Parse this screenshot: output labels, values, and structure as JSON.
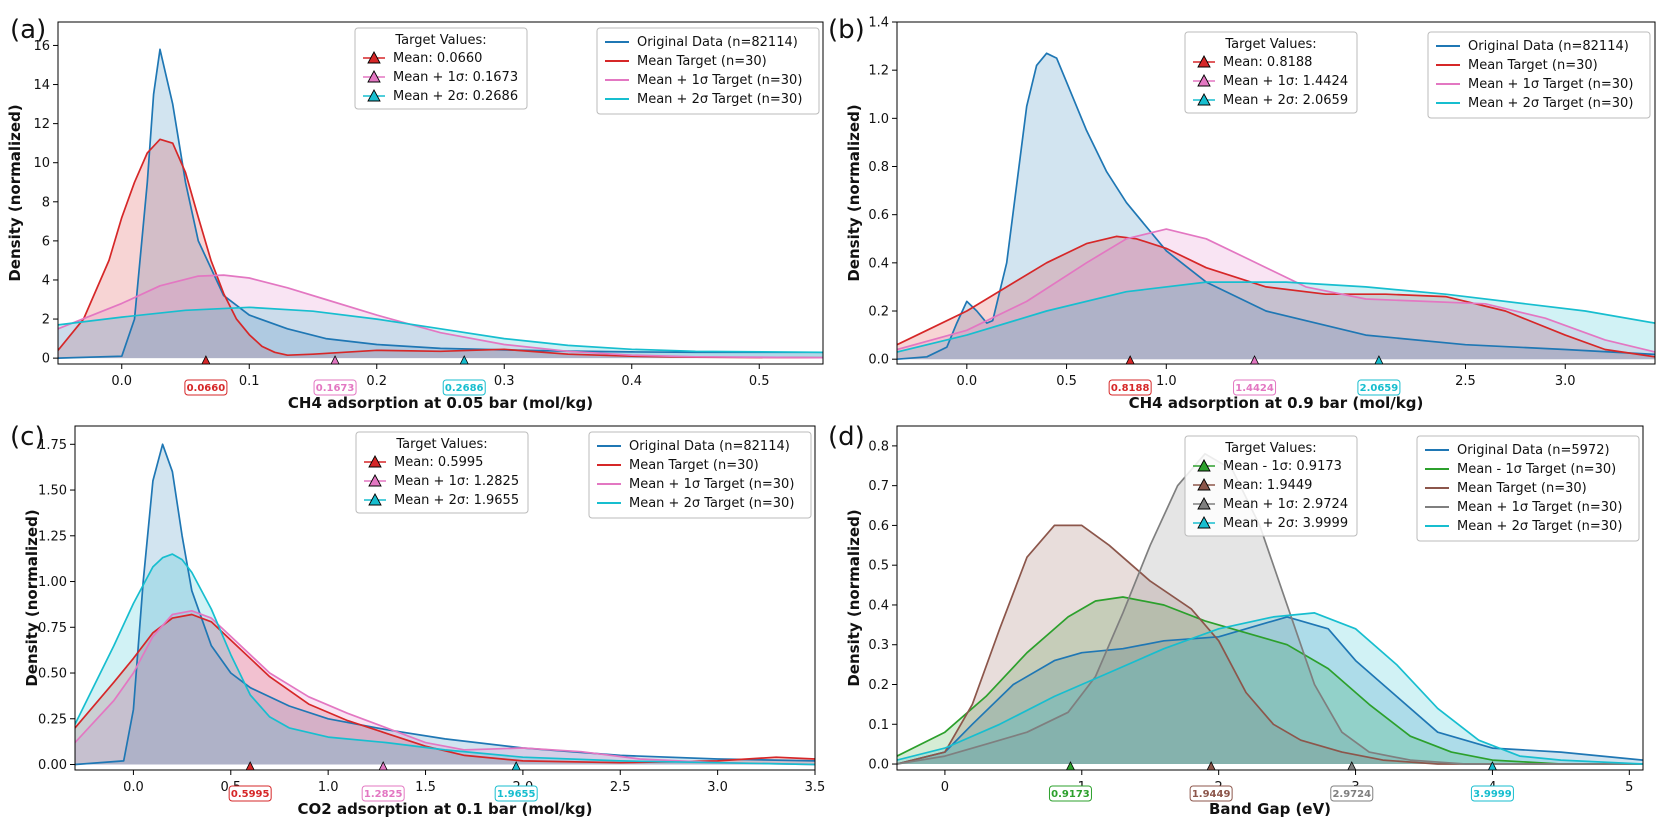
{
  "chart_data": [
    {
      "type": "area",
      "panel_label": "(a)",
      "xlabel": "CH4 adsorption at 0.05 bar (mol/kg)",
      "ylabel": "Density (normalized)",
      "xlim": [
        -0.05,
        0.55
      ],
      "ylim": [
        -0.3,
        17.2
      ],
      "xticks": [
        0.0,
        0.1,
        0.2,
        0.3,
        0.4,
        0.5
      ],
      "xtick_labels": [
        "0.0",
        "0.1",
        "0.2",
        "0.3",
        "0.4",
        "0.5"
      ],
      "yticks": [
        0,
        2,
        4,
        6,
        8,
        10,
        12,
        14,
        16
      ],
      "ytick_labels": [
        "0",
        "2",
        "4",
        "6",
        "8",
        "10",
        "12",
        "14",
        "16"
      ],
      "series": [
        {
          "name": "Original Data (n=82114)",
          "color": "#1f77b4",
          "x": [
            -0.05,
            0.0,
            0.01,
            0.02,
            0.025,
            0.03,
            0.04,
            0.05,
            0.06,
            0.08,
            0.1,
            0.13,
            0.16,
            0.2,
            0.25,
            0.3,
            0.35,
            0.4,
            0.45,
            0.5,
            0.55
          ],
          "y": [
            0.0,
            0.1,
            2.0,
            9.0,
            13.5,
            15.8,
            13.0,
            9.0,
            6.0,
            3.2,
            2.2,
            1.5,
            1.0,
            0.7,
            0.5,
            0.42,
            0.36,
            0.32,
            0.3,
            0.3,
            0.3
          ]
        },
        {
          "name": "Mean Target (n=30)",
          "color": "#d62728",
          "x": [
            -0.05,
            -0.03,
            -0.01,
            0.0,
            0.01,
            0.02,
            0.03,
            0.04,
            0.05,
            0.06,
            0.07,
            0.08,
            0.09,
            0.1,
            0.11,
            0.12,
            0.13,
            0.15,
            0.2,
            0.25,
            0.3,
            0.35,
            0.4,
            0.45,
            0.55
          ],
          "y": [
            0.4,
            2.0,
            5.0,
            7.2,
            9.0,
            10.5,
            11.2,
            11.0,
            9.5,
            7.2,
            5.0,
            3.3,
            2.0,
            1.2,
            0.6,
            0.3,
            0.15,
            0.2,
            0.4,
            0.35,
            0.45,
            0.2,
            0.1,
            0.05,
            0.02
          ]
        },
        {
          "name": "Mean + 1σ Target (n=30)",
          "color": "#e377c2",
          "x": [
            -0.05,
            0.0,
            0.03,
            0.06,
            0.08,
            0.1,
            0.13,
            0.16,
            0.2,
            0.25,
            0.3,
            0.35,
            0.4,
            0.45,
            0.55
          ],
          "y": [
            1.5,
            2.8,
            3.7,
            4.2,
            4.25,
            4.1,
            3.6,
            3.0,
            2.2,
            1.3,
            0.7,
            0.35,
            0.15,
            0.07,
            0.02
          ]
        },
        {
          "name": "Mean + 2σ Target (n=30)",
          "color": "#17becf",
          "x": [
            -0.05,
            0.0,
            0.05,
            0.1,
            0.15,
            0.2,
            0.25,
            0.3,
            0.35,
            0.4,
            0.45,
            0.55
          ],
          "y": [
            1.7,
            2.1,
            2.45,
            2.6,
            2.4,
            2.0,
            1.5,
            1.0,
            0.65,
            0.45,
            0.35,
            0.3
          ]
        }
      ],
      "targets": [
        {
          "label": "Mean: 0.0660",
          "value": 0.066,
          "value_label": "0.0660",
          "color": "#d62728"
        },
        {
          "label": "Mean + 1σ: 0.1673",
          "value": 0.1673,
          "value_label": "0.1673",
          "color": "#e377c2"
        },
        {
          "label": "Mean + 2σ: 0.2686",
          "value": 0.2686,
          "value_label": "0.2686",
          "color": "#17becf"
        }
      ],
      "legend_title": "Target Values:"
    },
    {
      "type": "area",
      "panel_label": "(b)",
      "xlabel": "CH4 adsorption at 0.9 bar (mol/kg)",
      "ylabel": "Density (normalized)",
      "xlim": [
        -0.35,
        3.45
      ],
      "ylim": [
        -0.02,
        1.4
      ],
      "xticks": [
        0.0,
        0.5,
        1.0,
        2.5,
        3.0
      ],
      "xtick_labels": [
        "0.0",
        "0.5",
        "1.0",
        "2.5",
        "3.0"
      ],
      "yticks": [
        0.0,
        0.2,
        0.4,
        0.6,
        0.8,
        1.0,
        1.2,
        1.4
      ],
      "ytick_labels": [
        "0.0",
        "0.2",
        "0.4",
        "0.6",
        "0.8",
        "1.0",
        "1.2",
        "1.4"
      ],
      "series": [
        {
          "name": "Original Data (n=82114)",
          "color": "#1f77b4",
          "x": [
            -0.35,
            -0.2,
            -0.1,
            -0.05,
            0.0,
            0.05,
            0.1,
            0.13,
            0.2,
            0.3,
            0.35,
            0.4,
            0.45,
            0.5,
            0.6,
            0.7,
            0.8,
            1.0,
            1.2,
            1.5,
            2.0,
            2.5,
            3.0,
            3.45
          ],
          "y": [
            0.0,
            0.01,
            0.05,
            0.15,
            0.24,
            0.2,
            0.15,
            0.16,
            0.4,
            1.05,
            1.22,
            1.27,
            1.25,
            1.15,
            0.95,
            0.78,
            0.65,
            0.45,
            0.32,
            0.2,
            0.1,
            0.06,
            0.04,
            0.02
          ]
        },
        {
          "name": "Mean Target (n=30)",
          "color": "#d62728",
          "x": [
            -0.35,
            -0.2,
            0.0,
            0.2,
            0.4,
            0.6,
            0.75,
            0.85,
            1.0,
            1.2,
            1.5,
            1.8,
            2.1,
            2.4,
            2.7,
            3.0,
            3.2,
            3.45
          ],
          "y": [
            0.06,
            0.12,
            0.2,
            0.3,
            0.4,
            0.48,
            0.51,
            0.5,
            0.46,
            0.38,
            0.3,
            0.27,
            0.27,
            0.26,
            0.2,
            0.1,
            0.04,
            0.01
          ]
        },
        {
          "name": "Mean + 1σ Target (n=30)",
          "color": "#e377c2",
          "x": [
            -0.35,
            0.0,
            0.3,
            0.6,
            0.8,
            1.0,
            1.2,
            1.4,
            1.7,
            2.0,
            2.3,
            2.6,
            2.9,
            3.2,
            3.45
          ],
          "y": [
            0.04,
            0.12,
            0.24,
            0.4,
            0.5,
            0.54,
            0.5,
            0.42,
            0.3,
            0.25,
            0.24,
            0.23,
            0.17,
            0.08,
            0.03
          ]
        },
        {
          "name": "Mean + 2σ Target (n=30)",
          "color": "#17becf",
          "x": [
            -0.35,
            0.0,
            0.4,
            0.8,
            1.2,
            1.6,
            2.0,
            2.4,
            2.8,
            3.1,
            3.45
          ],
          "y": [
            0.03,
            0.1,
            0.2,
            0.28,
            0.32,
            0.32,
            0.3,
            0.27,
            0.23,
            0.2,
            0.15
          ]
        }
      ],
      "targets": [
        {
          "label": "Mean: 0.8188",
          "value": 0.8188,
          "value_label": "0.8188",
          "color": "#d62728"
        },
        {
          "label": "Mean + 1σ: 1.4424",
          "value": 1.4424,
          "value_label": "1.4424",
          "color": "#e377c2"
        },
        {
          "label": "Mean + 2σ: 2.0659",
          "value": 2.0659,
          "value_label": "2.0659",
          "color": "#17becf"
        }
      ],
      "legend_title": "Target Values:"
    },
    {
      "type": "area",
      "panel_label": "(c)",
      "xlabel": "CO2 adsorption at 0.1 bar (mol/kg)",
      "ylabel": "Density (normalized)",
      "xlim": [
        -0.3,
        3.5
      ],
      "ylim": [
        -0.03,
        1.85
      ],
      "xticks": [
        0.0,
        0.5,
        1.0,
        1.5,
        2.0,
        2.5,
        3.0,
        3.5
      ],
      "xtick_labels": [
        "0.0",
        "0.5",
        "1.0",
        "1.5",
        "2.0",
        "2.5",
        "3.0",
        "3.5"
      ],
      "yticks": [
        0.0,
        0.25,
        0.5,
        0.75,
        1.0,
        1.25,
        1.5,
        1.75
      ],
      "ytick_labels": [
        "0.00",
        "0.25",
        "0.50",
        "0.75",
        "1.00",
        "1.25",
        "1.50",
        "1.75"
      ],
      "series": [
        {
          "name": "Original Data (n=82114)",
          "color": "#1f77b4",
          "x": [
            -0.3,
            -0.05,
            0.0,
            0.05,
            0.1,
            0.15,
            0.2,
            0.25,
            0.3,
            0.4,
            0.5,
            0.6,
            0.8,
            1.0,
            1.3,
            1.6,
            2.0,
            2.5,
            3.0,
            3.5
          ],
          "y": [
            0.0,
            0.02,
            0.3,
            1.0,
            1.55,
            1.75,
            1.6,
            1.25,
            0.95,
            0.65,
            0.5,
            0.42,
            0.32,
            0.25,
            0.19,
            0.14,
            0.09,
            0.05,
            0.03,
            0.02
          ]
        },
        {
          "name": "Mean Target (n=30)",
          "color": "#d62728",
          "x": [
            -0.3,
            -0.1,
            0.0,
            0.1,
            0.2,
            0.3,
            0.4,
            0.5,
            0.7,
            0.9,
            1.1,
            1.3,
            1.5,
            1.7,
            2.0,
            2.5,
            3.0,
            3.3,
            3.5
          ],
          "y": [
            0.2,
            0.45,
            0.58,
            0.72,
            0.8,
            0.82,
            0.78,
            0.68,
            0.48,
            0.33,
            0.24,
            0.17,
            0.1,
            0.05,
            0.02,
            0.01,
            0.02,
            0.04,
            0.03
          ]
        },
        {
          "name": "Mean + 1σ Target (n=30)",
          "color": "#e377c2",
          "x": [
            -0.3,
            -0.1,
            0.0,
            0.1,
            0.2,
            0.3,
            0.4,
            0.5,
            0.7,
            0.9,
            1.1,
            1.3,
            1.5,
            1.7,
            2.0,
            2.3,
            2.6,
            3.0,
            3.5
          ],
          "y": [
            0.12,
            0.35,
            0.5,
            0.7,
            0.82,
            0.84,
            0.8,
            0.7,
            0.5,
            0.37,
            0.28,
            0.2,
            0.12,
            0.08,
            0.09,
            0.07,
            0.03,
            0.01,
            0.0
          ]
        },
        {
          "name": "Mean + 2σ Target (n=30)",
          "color": "#17becf",
          "x": [
            -0.3,
            -0.1,
            0.0,
            0.1,
            0.15,
            0.2,
            0.25,
            0.3,
            0.4,
            0.5,
            0.6,
            0.7,
            0.8,
            1.0,
            1.3,
            1.6,
            2.0,
            2.5,
            3.0,
            3.5
          ],
          "y": [
            0.22,
            0.65,
            0.88,
            1.08,
            1.13,
            1.15,
            1.12,
            1.05,
            0.85,
            0.6,
            0.38,
            0.26,
            0.2,
            0.15,
            0.12,
            0.08,
            0.04,
            0.02,
            0.01,
            0.0
          ]
        }
      ],
      "targets": [
        {
          "label": "Mean: 0.5995",
          "value": 0.5995,
          "value_label": "0.5995",
          "color": "#d62728"
        },
        {
          "label": "Mean + 1σ: 1.2825",
          "value": 1.2825,
          "value_label": "1.2825",
          "color": "#e377c2"
        },
        {
          "label": "Mean + 2σ: 1.9655",
          "value": 1.9655,
          "value_label": "1.9655",
          "color": "#17becf"
        }
      ],
      "legend_title": "Target Values:"
    },
    {
      "type": "area",
      "panel_label": "(d)",
      "xlabel": "Band Gap (eV)",
      "ylabel": "Density (normalized)",
      "xlim": [
        -0.35,
        5.1
      ],
      "ylim": [
        -0.015,
        0.85
      ],
      "xticks": [
        0,
        1,
        2,
        3,
        4,
        5
      ],
      "xtick_labels": [
        "0",
        "1",
        "2",
        "3",
        "4",
        "5"
      ],
      "yticks": [
        0.0,
        0.1,
        0.2,
        0.3,
        0.4,
        0.5,
        0.6,
        0.7,
        0.8
      ],
      "ytick_labels": [
        "0.0",
        "0.1",
        "0.2",
        "0.3",
        "0.4",
        "0.5",
        "0.6",
        "0.7",
        "0.8"
      ],
      "series": [
        {
          "name": "Original Data (n=5972)",
          "color": "#1f77b4",
          "x": [
            -0.35,
            0.0,
            0.2,
            0.5,
            0.8,
            1.0,
            1.3,
            1.6,
            2.0,
            2.3,
            2.5,
            2.8,
            3.0,
            3.3,
            3.6,
            4.0,
            4.5,
            5.1
          ],
          "y": [
            0.0,
            0.03,
            0.1,
            0.2,
            0.26,
            0.28,
            0.29,
            0.31,
            0.32,
            0.35,
            0.37,
            0.34,
            0.26,
            0.17,
            0.08,
            0.04,
            0.03,
            0.01
          ]
        },
        {
          "name": "Mean - 1σ Target (n=30)",
          "color": "#2ca02c",
          "x": [
            -0.35,
            0.0,
            0.3,
            0.6,
            0.9,
            1.1,
            1.3,
            1.6,
            1.9,
            2.2,
            2.5,
            2.8,
            3.1,
            3.4,
            3.7,
            4.0,
            4.5,
            5.1
          ],
          "y": [
            0.02,
            0.08,
            0.17,
            0.28,
            0.37,
            0.41,
            0.42,
            0.4,
            0.36,
            0.33,
            0.3,
            0.24,
            0.15,
            0.07,
            0.03,
            0.01,
            0.0,
            0.0
          ]
        },
        {
          "name": "Mean Target (n=30)",
          "color": "#8c564b",
          "x": [
            -0.35,
            0.0,
            0.2,
            0.4,
            0.6,
            0.8,
            1.0,
            1.2,
            1.5,
            1.8,
            2.0,
            2.2,
            2.4,
            2.6,
            2.9,
            3.2,
            3.6,
            5.1
          ],
          "y": [
            0.0,
            0.03,
            0.15,
            0.34,
            0.52,
            0.6,
            0.6,
            0.55,
            0.46,
            0.39,
            0.31,
            0.18,
            0.1,
            0.06,
            0.03,
            0.01,
            0.0,
            0.0
          ]
        },
        {
          "name": "Mean + 1σ Target (n=30)",
          "color": "#7f7f7f",
          "x": [
            -0.35,
            0.0,
            0.3,
            0.6,
            0.9,
            1.1,
            1.3,
            1.5,
            1.7,
            1.9,
            2.1,
            2.3,
            2.5,
            2.7,
            2.9,
            3.1,
            3.4,
            3.8,
            5.1
          ],
          "y": [
            0.0,
            0.02,
            0.05,
            0.08,
            0.13,
            0.22,
            0.38,
            0.55,
            0.7,
            0.78,
            0.74,
            0.6,
            0.4,
            0.2,
            0.08,
            0.03,
            0.01,
            0.0,
            0.0
          ]
        },
        {
          "name": "Mean + 2σ Target (n=30)",
          "color": "#17becf",
          "x": [
            -0.35,
            0.0,
            0.4,
            0.8,
            1.2,
            1.6,
            2.0,
            2.4,
            2.7,
            3.0,
            3.3,
            3.6,
            3.9,
            4.2,
            4.5,
            5.1
          ],
          "y": [
            0.01,
            0.04,
            0.1,
            0.17,
            0.23,
            0.29,
            0.34,
            0.37,
            0.38,
            0.34,
            0.25,
            0.14,
            0.06,
            0.02,
            0.01,
            0.0
          ]
        }
      ],
      "targets": [
        {
          "label": "Mean - 1σ: 0.9173",
          "value": 0.9173,
          "value_label": "0.9173",
          "color": "#2ca02c"
        },
        {
          "label": "Mean: 1.9449",
          "value": 1.9449,
          "value_label": "1.9449",
          "color": "#8c564b"
        },
        {
          "label": "Mean + 1σ: 2.9724",
          "value": 2.9724,
          "value_label": "2.9724",
          "color": "#7f7f7f"
        },
        {
          "label": "Mean + 2σ: 3.9999",
          "value": 3.9999,
          "value_label": "3.9999",
          "color": "#17becf"
        }
      ],
      "legend_title": "Target Values:"
    }
  ]
}
